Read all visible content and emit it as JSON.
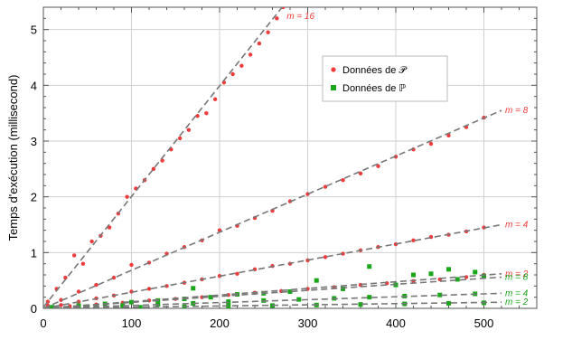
{
  "chart_data": {
    "type": "scatter",
    "title": "",
    "xlabel": "",
    "ylabel": "Temps d'exécution (millisecond)",
    "xlim": [
      0,
      560
    ],
    "ylim": [
      0,
      5.4
    ],
    "xticks": [
      "0",
      "100",
      "200",
      "300",
      "400",
      "500"
    ],
    "yticks": [
      "0",
      "1",
      "2",
      "3",
      "4",
      "5"
    ],
    "grid": true,
    "legend_position": "top-center",
    "legend": [
      {
        "label": "Données de 𝒫",
        "color": "#ee3b3b",
        "marker": "circle"
      },
      {
        "label": "Données de ℙ",
        "color": "#19a619",
        "marker": "square"
      }
    ],
    "fit_lines": [
      {
        "label": "m = 16",
        "color": "#ee3b3b",
        "x": [
          0,
          272
        ],
        "y": [
          0.02,
          5.42
        ]
      },
      {
        "label": "m = 8",
        "color": "#ee3b3b",
        "x": [
          0,
          520
        ],
        "y": [
          0.0,
          3.55
        ]
      },
      {
        "label": "m = 4",
        "color": "#ee3b3b",
        "x": [
          0,
          520
        ],
        "y": [
          0.0,
          1.5
        ]
      },
      {
        "label": "m = 2",
        "color": "#ee3b3b",
        "x": [
          0,
          520
        ],
        "y": [
          0.0,
          0.62
        ]
      },
      {
        "label": "m = 8",
        "color": "#19a619",
        "x": [
          0,
          520
        ],
        "y": [
          0.0,
          0.56
        ]
      },
      {
        "label": "m = 4",
        "color": "#19a619",
        "x": [
          0,
          520
        ],
        "y": [
          0.0,
          0.27
        ]
      },
      {
        "label": "m = 2",
        "color": "#19a619",
        "x": [
          0,
          520
        ],
        "y": [
          0.0,
          0.11
        ]
      }
    ],
    "series": [
      {
        "legend": "Données de 𝒫",
        "m": 16,
        "color": "#ee3b3b",
        "marker": "circle",
        "x": [
          5,
          15,
          25,
          35,
          45,
          55,
          65,
          75,
          85,
          95,
          105,
          115,
          125,
          135,
          145,
          155,
          165,
          175,
          185,
          195,
          205,
          215,
          225,
          235,
          245,
          255,
          265,
          272
        ],
        "y": [
          0.12,
          0.35,
          0.55,
          0.95,
          0.8,
          1.2,
          1.3,
          1.45,
          1.7,
          2.0,
          2.15,
          2.3,
          2.5,
          2.65,
          2.85,
          3.05,
          3.2,
          3.45,
          3.5,
          3.75,
          4.05,
          4.2,
          4.35,
          4.55,
          4.75,
          4.95,
          5.2,
          5.4
        ]
      },
      {
        "legend": "Données de 𝒫",
        "m": 8,
        "color": "#ee3b3b",
        "marker": "circle",
        "x": [
          5,
          20,
          40,
          60,
          80,
          100,
          120,
          140,
          160,
          180,
          200,
          220,
          240,
          260,
          280,
          300,
          320,
          340,
          360,
          380,
          400,
          420,
          440,
          460,
          480,
          500
        ],
        "y": [
          0.05,
          0.15,
          0.3,
          0.42,
          0.55,
          0.78,
          0.82,
          0.98,
          1.1,
          1.22,
          1.4,
          1.48,
          1.62,
          1.75,
          1.92,
          2.05,
          2.18,
          2.3,
          2.42,
          2.55,
          2.72,
          2.85,
          2.95,
          3.1,
          3.25,
          3.42
        ]
      },
      {
        "legend": "Données de 𝒫",
        "m": 4,
        "color": "#ee3b3b",
        "marker": "circle",
        "x": [
          5,
          20,
          40,
          60,
          80,
          100,
          120,
          140,
          160,
          180,
          200,
          220,
          240,
          260,
          280,
          300,
          320,
          340,
          360,
          380,
          400,
          420,
          440,
          460,
          480,
          500
        ],
        "y": [
          0.02,
          0.06,
          0.12,
          0.18,
          0.23,
          0.3,
          0.35,
          0.4,
          0.46,
          0.52,
          0.58,
          0.62,
          0.7,
          0.76,
          0.8,
          0.86,
          0.92,
          0.98,
          1.04,
          1.1,
          1.15,
          1.22,
          1.28,
          1.32,
          1.38,
          1.45
        ]
      },
      {
        "legend": "Données de 𝒫",
        "m": 2,
        "color": "#ee3b3b",
        "marker": "circle",
        "x": [
          5,
          30,
          60,
          90,
          120,
          150,
          180,
          210,
          240,
          270,
          300,
          330,
          360,
          390,
          420,
          450,
          480,
          500
        ],
        "y": [
          0.01,
          0.04,
          0.07,
          0.1,
          0.14,
          0.17,
          0.2,
          0.24,
          0.28,
          0.31,
          0.35,
          0.38,
          0.42,
          0.45,
          0.49,
          0.52,
          0.56,
          0.6
        ]
      },
      {
        "legend": "Données de ℙ",
        "m": 8,
        "color": "#19a619",
        "marker": "square",
        "x": [
          10,
          40,
          70,
          100,
          130,
          160,
          170,
          190,
          220,
          250,
          280,
          310,
          340,
          370,
          400,
          420,
          440,
          460,
          470,
          490,
          500
        ],
        "y": [
          0.02,
          0.05,
          0.08,
          0.11,
          0.14,
          0.17,
          0.36,
          0.2,
          0.25,
          0.27,
          0.3,
          0.5,
          0.35,
          0.75,
          0.42,
          0.6,
          0.62,
          0.7,
          0.52,
          0.65,
          0.58
        ]
      },
      {
        "legend": "Données de ℙ",
        "m": 4,
        "color": "#19a619",
        "marker": "square",
        "x": [
          10,
          50,
          90,
          130,
          170,
          210,
          250,
          290,
          330,
          370,
          410,
          450,
          490
        ],
        "y": [
          0.01,
          0.03,
          0.05,
          0.07,
          0.09,
          0.12,
          0.14,
          0.16,
          0.18,
          0.2,
          0.22,
          0.24,
          0.26
        ]
      },
      {
        "legend": "Données de ℙ",
        "m": 2,
        "color": "#19a619",
        "marker": "square",
        "x": [
          10,
          60,
          110,
          160,
          210,
          260,
          310,
          360,
          410,
          460,
          500
        ],
        "y": [
          0.0,
          0.01,
          0.02,
          0.03,
          0.04,
          0.05,
          0.06,
          0.07,
          0.08,
          0.09,
          0.1
        ]
      }
    ]
  }
}
